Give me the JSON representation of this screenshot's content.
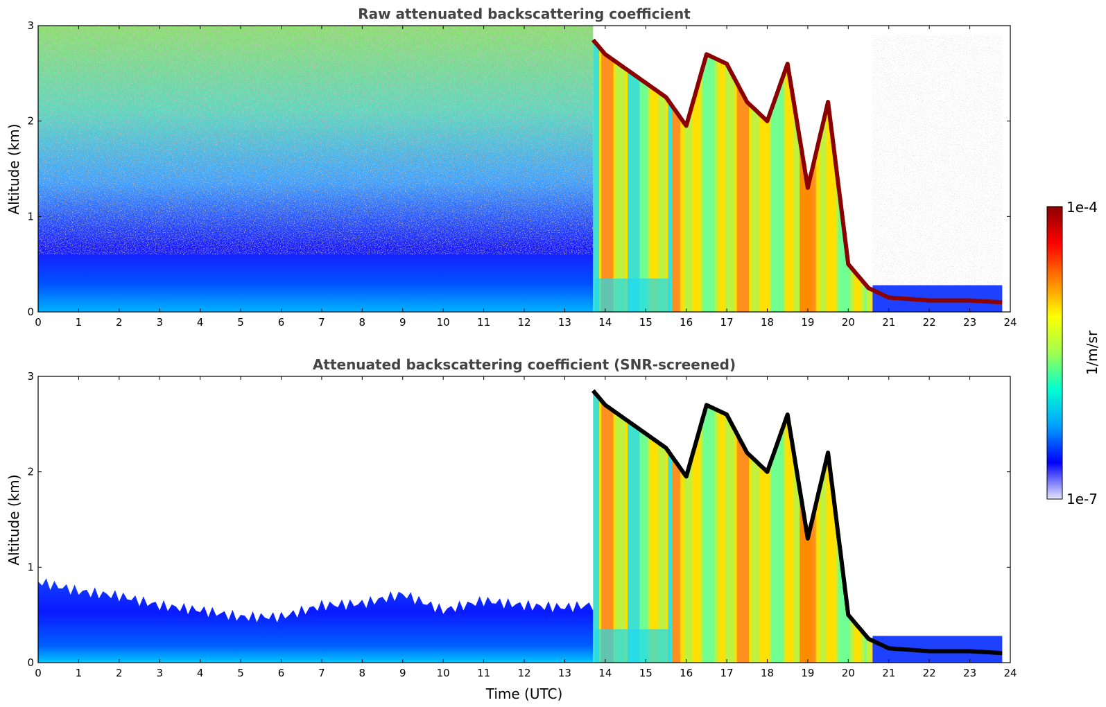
{
  "chart_data": [
    {
      "type": "heatmap",
      "title": "Raw attenuated backscattering coefficient",
      "xlabel": "",
      "ylabel": "Altitude (km)",
      "xlim": [
        0,
        24
      ],
      "ylim": [
        0,
        3
      ],
      "xticks": [
        "0",
        "1",
        "2",
        "3",
        "4",
        "5",
        "6",
        "7",
        "8",
        "9",
        "10",
        "11",
        "12",
        "13",
        "14",
        "15",
        "16",
        "17",
        "18",
        "19",
        "20",
        "21",
        "22",
        "23",
        "24"
      ],
      "yticks": [
        "0",
        "1",
        "2",
        "3"
      ],
      "grid": false,
      "screened": false
    },
    {
      "type": "heatmap",
      "title": "Attenuated backscattering coefficient (SNR-screened)",
      "xlabel": "Time (UTC)",
      "ylabel": "Altitude (km)",
      "xlim": [
        0,
        24
      ],
      "ylim": [
        0,
        3
      ],
      "xticks": [
        "0",
        "1",
        "2",
        "3",
        "4",
        "5",
        "6",
        "7",
        "8",
        "9",
        "10",
        "11",
        "12",
        "13",
        "14",
        "15",
        "16",
        "17",
        "18",
        "19",
        "20",
        "21",
        "22",
        "23",
        "24"
      ],
      "yticks": [
        "0",
        "1",
        "2",
        "3"
      ],
      "grid": false,
      "screened": true
    }
  ],
  "colorbar": {
    "label": "1/m/sr",
    "max_label": "1e-4",
    "min_label": "1e-7",
    "scale": "log",
    "range": [
      1e-07,
      0.0001
    ],
    "colormap": "jet",
    "colors": [
      "#e6e6fa",
      "#0000ff",
      "#00a0ff",
      "#00ffd0",
      "#a0ff50",
      "#ffff00",
      "#ff8000",
      "#ff0000",
      "#8b0000"
    ]
  },
  "features": {
    "cloud_base_km_vs_time": [
      [
        13.7,
        2.85
      ],
      [
        14.0,
        2.7
      ],
      [
        14.5,
        2.55
      ],
      [
        15.0,
        2.4
      ],
      [
        15.5,
        2.25
      ],
      [
        16.0,
        1.95
      ],
      [
        16.5,
        2.7
      ],
      [
        17.0,
        2.6
      ],
      [
        17.5,
        2.2
      ],
      [
        18.0,
        2.0
      ],
      [
        18.5,
        2.6
      ],
      [
        19.0,
        1.3
      ],
      [
        19.5,
        2.2
      ],
      [
        20.0,
        0.5
      ],
      [
        20.5,
        0.25
      ],
      [
        21.0,
        0.15
      ],
      [
        22.0,
        0.12
      ],
      [
        23.0,
        0.12
      ],
      [
        23.8,
        0.1
      ]
    ],
    "boundary_layer_top_km_vs_time": [
      [
        0,
        0.85
      ],
      [
        1,
        0.75
      ],
      [
        2,
        0.7
      ],
      [
        3,
        0.6
      ],
      [
        4,
        0.55
      ],
      [
        5,
        0.48
      ],
      [
        6,
        0.48
      ],
      [
        7,
        0.6
      ],
      [
        8,
        0.62
      ],
      [
        9,
        0.72
      ],
      [
        10,
        0.55
      ],
      [
        11,
        0.65
      ],
      [
        12,
        0.6
      ],
      [
        13,
        0.58
      ],
      [
        13.6,
        0.6
      ]
    ],
    "data_end_hour": 23.8
  }
}
